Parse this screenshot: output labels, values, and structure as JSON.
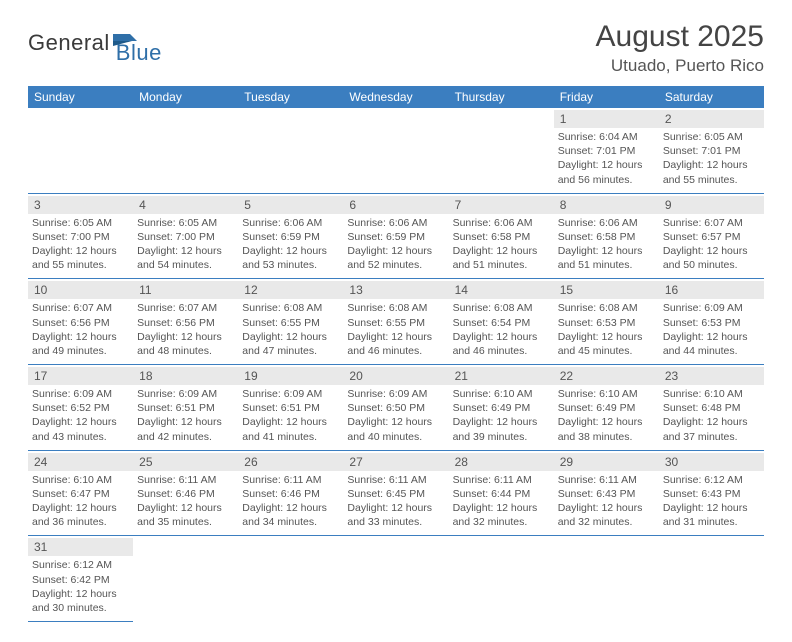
{
  "logo": {
    "general": "General",
    "blue": "Blue"
  },
  "title": {
    "month": "August 2025",
    "location": "Utuado, Puerto Rico"
  },
  "weekdays": [
    "Sunday",
    "Monday",
    "Tuesday",
    "Wednesday",
    "Thursday",
    "Friday",
    "Saturday"
  ],
  "colors": {
    "header_bg": "#3b7ec0",
    "header_fg": "#ffffff",
    "daynum_bg": "#e9e9e9",
    "rule": "#3b7ec0",
    "text": "#555555"
  },
  "cells": [
    [
      null,
      null,
      null,
      null,
      null,
      {
        "n": "1",
        "sr": "Sunrise: 6:04 AM",
        "ss": "Sunset: 7:01 PM",
        "d1": "Daylight: 12 hours",
        "d2": "and 56 minutes."
      },
      {
        "n": "2",
        "sr": "Sunrise: 6:05 AM",
        "ss": "Sunset: 7:01 PM",
        "d1": "Daylight: 12 hours",
        "d2": "and 55 minutes."
      }
    ],
    [
      {
        "n": "3",
        "sr": "Sunrise: 6:05 AM",
        "ss": "Sunset: 7:00 PM",
        "d1": "Daylight: 12 hours",
        "d2": "and 55 minutes."
      },
      {
        "n": "4",
        "sr": "Sunrise: 6:05 AM",
        "ss": "Sunset: 7:00 PM",
        "d1": "Daylight: 12 hours",
        "d2": "and 54 minutes."
      },
      {
        "n": "5",
        "sr": "Sunrise: 6:06 AM",
        "ss": "Sunset: 6:59 PM",
        "d1": "Daylight: 12 hours",
        "d2": "and 53 minutes."
      },
      {
        "n": "6",
        "sr": "Sunrise: 6:06 AM",
        "ss": "Sunset: 6:59 PM",
        "d1": "Daylight: 12 hours",
        "d2": "and 52 minutes."
      },
      {
        "n": "7",
        "sr": "Sunrise: 6:06 AM",
        "ss": "Sunset: 6:58 PM",
        "d1": "Daylight: 12 hours",
        "d2": "and 51 minutes."
      },
      {
        "n": "8",
        "sr": "Sunrise: 6:06 AM",
        "ss": "Sunset: 6:58 PM",
        "d1": "Daylight: 12 hours",
        "d2": "and 51 minutes."
      },
      {
        "n": "9",
        "sr": "Sunrise: 6:07 AM",
        "ss": "Sunset: 6:57 PM",
        "d1": "Daylight: 12 hours",
        "d2": "and 50 minutes."
      }
    ],
    [
      {
        "n": "10",
        "sr": "Sunrise: 6:07 AM",
        "ss": "Sunset: 6:56 PM",
        "d1": "Daylight: 12 hours",
        "d2": "and 49 minutes."
      },
      {
        "n": "11",
        "sr": "Sunrise: 6:07 AM",
        "ss": "Sunset: 6:56 PM",
        "d1": "Daylight: 12 hours",
        "d2": "and 48 minutes."
      },
      {
        "n": "12",
        "sr": "Sunrise: 6:08 AM",
        "ss": "Sunset: 6:55 PM",
        "d1": "Daylight: 12 hours",
        "d2": "and 47 minutes."
      },
      {
        "n": "13",
        "sr": "Sunrise: 6:08 AM",
        "ss": "Sunset: 6:55 PM",
        "d1": "Daylight: 12 hours",
        "d2": "and 46 minutes."
      },
      {
        "n": "14",
        "sr": "Sunrise: 6:08 AM",
        "ss": "Sunset: 6:54 PM",
        "d1": "Daylight: 12 hours",
        "d2": "and 46 minutes."
      },
      {
        "n": "15",
        "sr": "Sunrise: 6:08 AM",
        "ss": "Sunset: 6:53 PM",
        "d1": "Daylight: 12 hours",
        "d2": "and 45 minutes."
      },
      {
        "n": "16",
        "sr": "Sunrise: 6:09 AM",
        "ss": "Sunset: 6:53 PM",
        "d1": "Daylight: 12 hours",
        "d2": "and 44 minutes."
      }
    ],
    [
      {
        "n": "17",
        "sr": "Sunrise: 6:09 AM",
        "ss": "Sunset: 6:52 PM",
        "d1": "Daylight: 12 hours",
        "d2": "and 43 minutes."
      },
      {
        "n": "18",
        "sr": "Sunrise: 6:09 AM",
        "ss": "Sunset: 6:51 PM",
        "d1": "Daylight: 12 hours",
        "d2": "and 42 minutes."
      },
      {
        "n": "19",
        "sr": "Sunrise: 6:09 AM",
        "ss": "Sunset: 6:51 PM",
        "d1": "Daylight: 12 hours",
        "d2": "and 41 minutes."
      },
      {
        "n": "20",
        "sr": "Sunrise: 6:09 AM",
        "ss": "Sunset: 6:50 PM",
        "d1": "Daylight: 12 hours",
        "d2": "and 40 minutes."
      },
      {
        "n": "21",
        "sr": "Sunrise: 6:10 AM",
        "ss": "Sunset: 6:49 PM",
        "d1": "Daylight: 12 hours",
        "d2": "and 39 minutes."
      },
      {
        "n": "22",
        "sr": "Sunrise: 6:10 AM",
        "ss": "Sunset: 6:49 PM",
        "d1": "Daylight: 12 hours",
        "d2": "and 38 minutes."
      },
      {
        "n": "23",
        "sr": "Sunrise: 6:10 AM",
        "ss": "Sunset: 6:48 PM",
        "d1": "Daylight: 12 hours",
        "d2": "and 37 minutes."
      }
    ],
    [
      {
        "n": "24",
        "sr": "Sunrise: 6:10 AM",
        "ss": "Sunset: 6:47 PM",
        "d1": "Daylight: 12 hours",
        "d2": "and 36 minutes."
      },
      {
        "n": "25",
        "sr": "Sunrise: 6:11 AM",
        "ss": "Sunset: 6:46 PM",
        "d1": "Daylight: 12 hours",
        "d2": "and 35 minutes."
      },
      {
        "n": "26",
        "sr": "Sunrise: 6:11 AM",
        "ss": "Sunset: 6:46 PM",
        "d1": "Daylight: 12 hours",
        "d2": "and 34 minutes."
      },
      {
        "n": "27",
        "sr": "Sunrise: 6:11 AM",
        "ss": "Sunset: 6:45 PM",
        "d1": "Daylight: 12 hours",
        "d2": "and 33 minutes."
      },
      {
        "n": "28",
        "sr": "Sunrise: 6:11 AM",
        "ss": "Sunset: 6:44 PM",
        "d1": "Daylight: 12 hours",
        "d2": "and 32 minutes."
      },
      {
        "n": "29",
        "sr": "Sunrise: 6:11 AM",
        "ss": "Sunset: 6:43 PM",
        "d1": "Daylight: 12 hours",
        "d2": "and 32 minutes."
      },
      {
        "n": "30",
        "sr": "Sunrise: 6:12 AM",
        "ss": "Sunset: 6:43 PM",
        "d1": "Daylight: 12 hours",
        "d2": "and 31 minutes."
      }
    ],
    [
      {
        "n": "31",
        "sr": "Sunrise: 6:12 AM",
        "ss": "Sunset: 6:42 PM",
        "d1": "Daylight: 12 hours",
        "d2": "and 30 minutes."
      },
      null,
      null,
      null,
      null,
      null,
      null
    ]
  ]
}
